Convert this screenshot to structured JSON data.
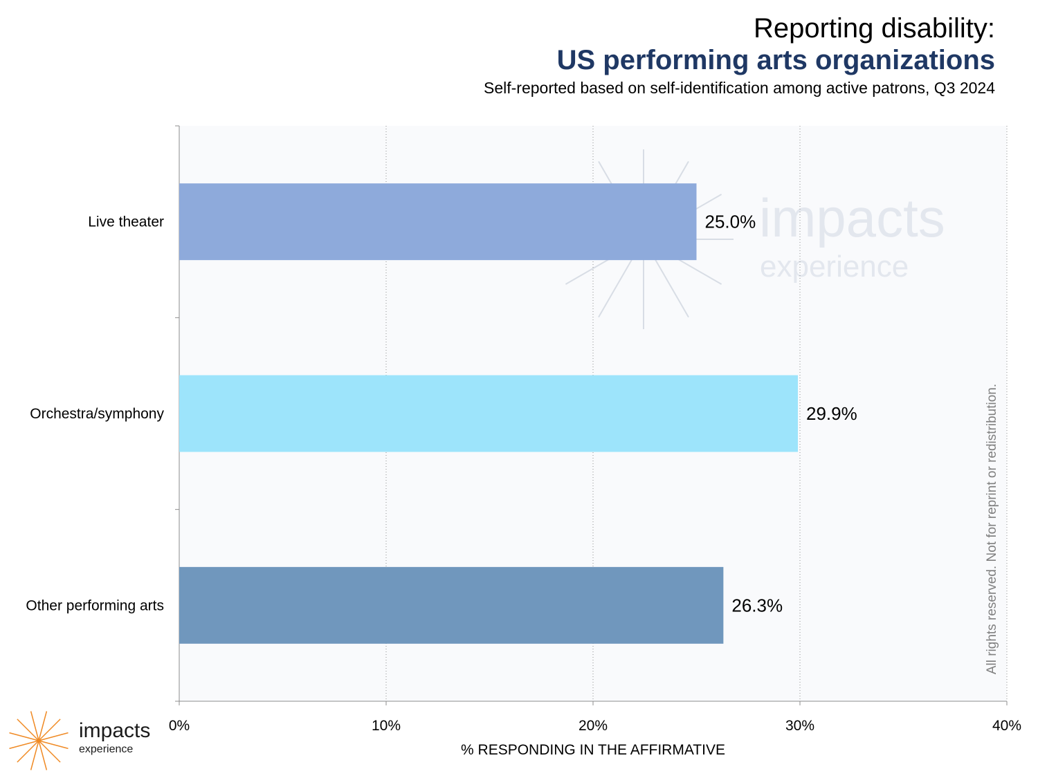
{
  "header": {
    "title_line1": "Reporting disability:",
    "title_line2": "US performing arts organizations",
    "subtitle": "Self-reported based on self-identification among active patrons, Q3 2024"
  },
  "rights_note": "All rights reserved. Not for reprint or redistribution.",
  "watermark": {
    "word": "impacts",
    "sub": "experience"
  },
  "logo": {
    "word": "impacts",
    "sub": "experience",
    "color": "#f08a24"
  },
  "chart_data": {
    "type": "bar",
    "orientation": "horizontal",
    "categories": [
      "Live theater",
      "Orchestra/symphony",
      "Other performing arts"
    ],
    "values": [
      25.0,
      29.9,
      26.3
    ],
    "value_labels": [
      "25.0%",
      "29.9%",
      "26.3%"
    ],
    "colors": [
      "#8eaadb",
      "#9de4fb",
      "#7097bd"
    ],
    "xlabel": "% RESPONDING IN THE AFFIRMATIVE",
    "xlim": [
      0,
      40
    ],
    "xticks": [
      0,
      10,
      20,
      30,
      40
    ],
    "xtick_labels": [
      "0%",
      "10%",
      "20%",
      "30%",
      "40%"
    ],
    "grid": "vertical dotted",
    "plot_background": "#f9fafc"
  }
}
